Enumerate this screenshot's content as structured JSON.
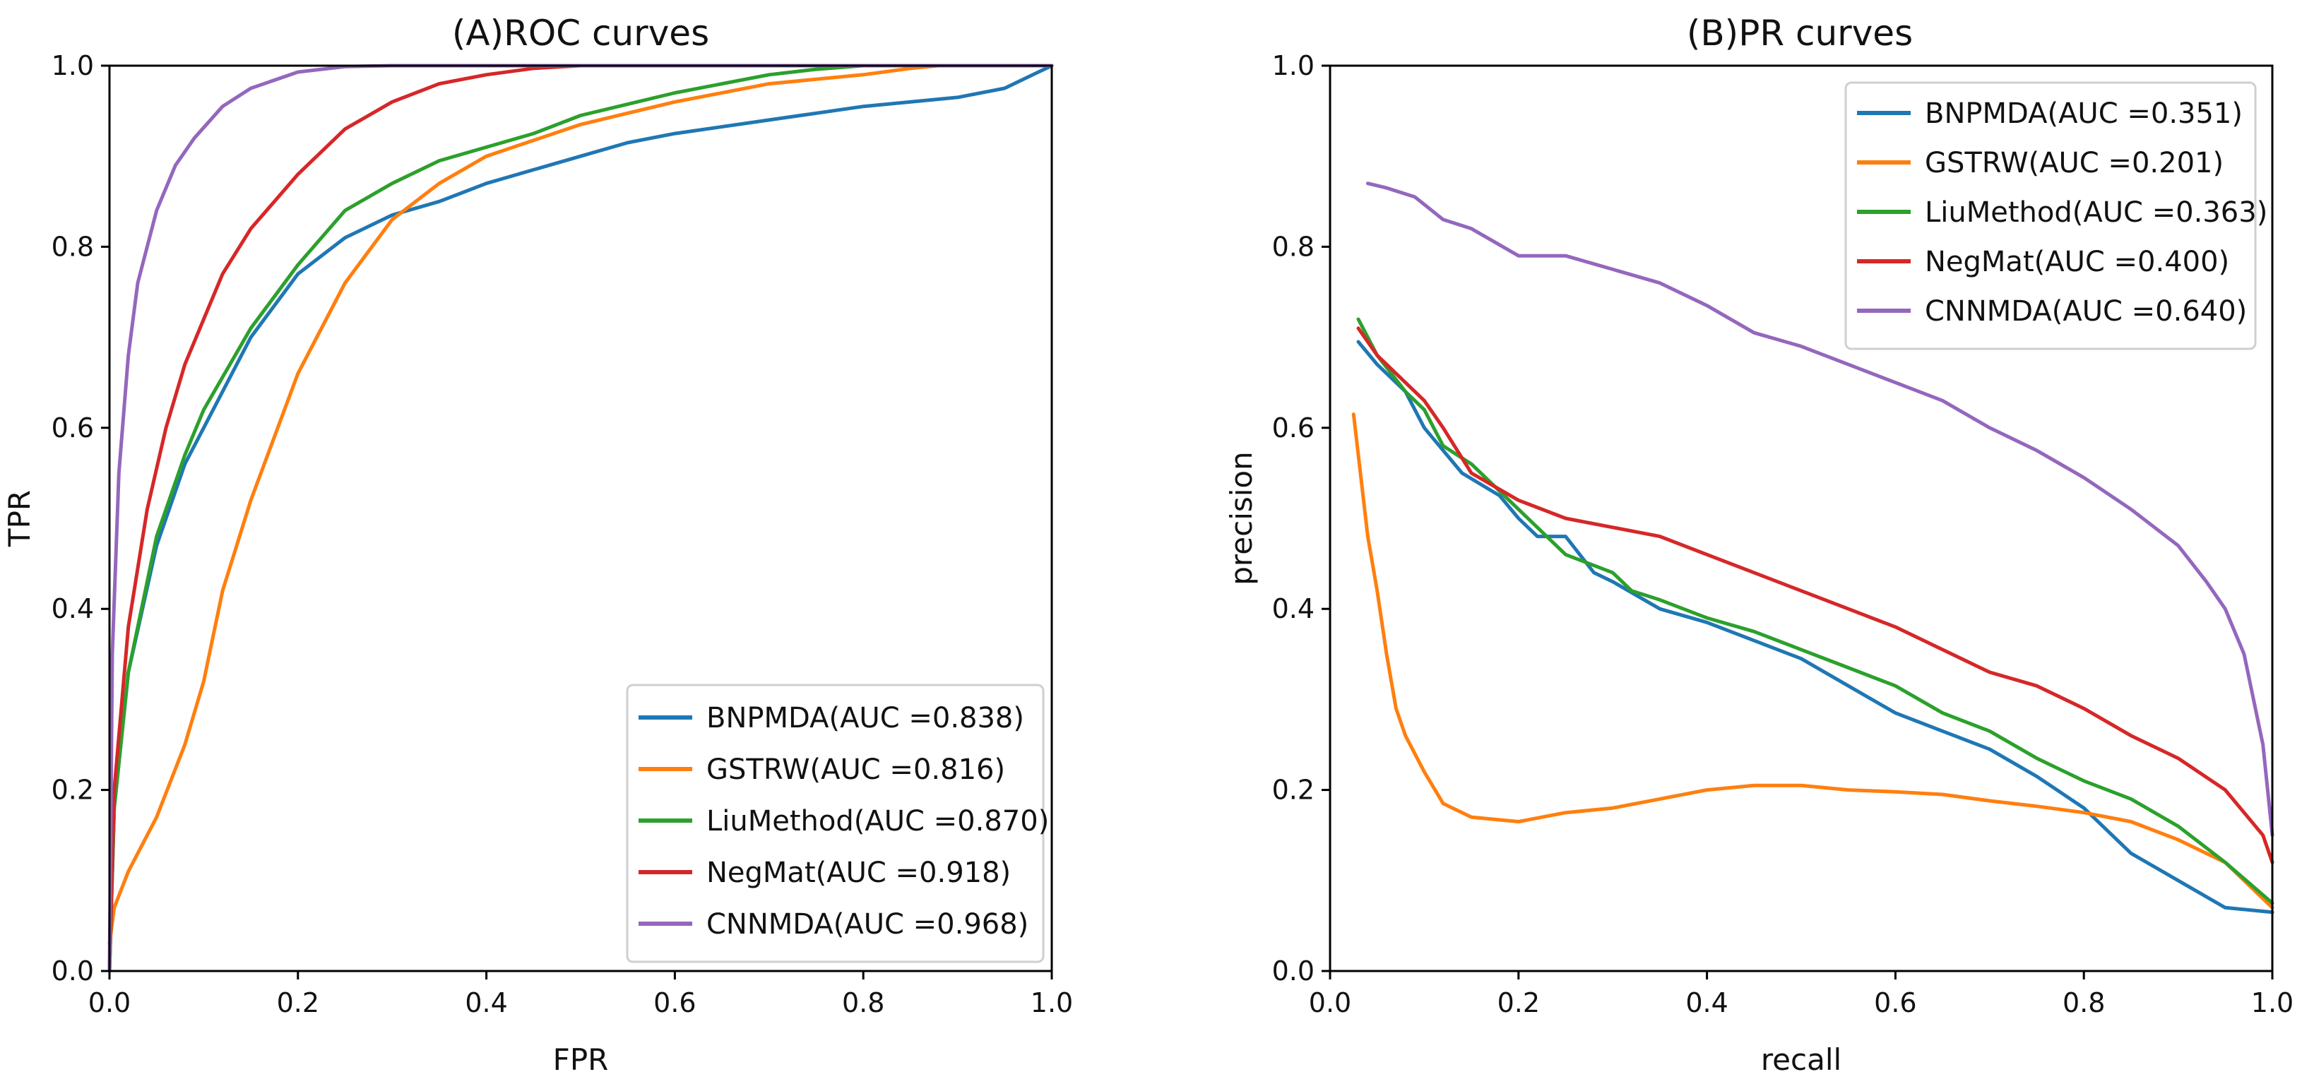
{
  "chart_data": [
    {
      "id": "roc",
      "type": "line",
      "title": "(A)ROC curves",
      "xlabel": "FPR",
      "ylabel": "TPR",
      "xlim": [
        0,
        1
      ],
      "ylim": [
        0,
        1
      ],
      "xticks": [
        "0.0",
        "0.2",
        "0.4",
        "0.6",
        "0.8",
        "1.0"
      ],
      "yticks": [
        "0.0",
        "0.2",
        "0.4",
        "0.6",
        "0.8",
        "1.0"
      ],
      "legend_position": "lower-right",
      "series": [
        {
          "name": "BNPMDA(AUC =0.838)",
          "color": "#1f77b4",
          "x": [
            0,
            0.005,
            0.02,
            0.05,
            0.08,
            0.1,
            0.15,
            0.2,
            0.25,
            0.3,
            0.35,
            0.4,
            0.45,
            0.5,
            0.55,
            0.6,
            0.7,
            0.8,
            0.9,
            0.95,
            0.98,
            1.0
          ],
          "y": [
            0,
            0.18,
            0.33,
            0.47,
            0.56,
            0.6,
            0.7,
            0.77,
            0.81,
            0.835,
            0.85,
            0.87,
            0.885,
            0.9,
            0.915,
            0.925,
            0.94,
            0.955,
            0.965,
            0.975,
            0.99,
            1.0
          ]
        },
        {
          "name": "GSTRW(AUC =0.816)",
          "color": "#ff7f0e",
          "x": [
            0,
            0.005,
            0.02,
            0.05,
            0.08,
            0.1,
            0.12,
            0.15,
            0.2,
            0.25,
            0.3,
            0.35,
            0.4,
            0.5,
            0.6,
            0.7,
            0.8,
            0.85,
            0.88,
            1.0
          ],
          "y": [
            0.03,
            0.07,
            0.11,
            0.17,
            0.25,
            0.32,
            0.42,
            0.52,
            0.66,
            0.76,
            0.83,
            0.87,
            0.9,
            0.935,
            0.96,
            0.98,
            0.99,
            0.997,
            1.0,
            1.0
          ],
          "close_to_top": true
        },
        {
          "name": "LiuMethod(AUC =0.870)",
          "color": "#2ca02c",
          "x": [
            0,
            0.005,
            0.02,
            0.05,
            0.08,
            0.1,
            0.15,
            0.2,
            0.25,
            0.3,
            0.35,
            0.4,
            0.45,
            0.5,
            0.6,
            0.7,
            0.75,
            0.8,
            1.0
          ],
          "y": [
            0,
            0.18,
            0.33,
            0.48,
            0.57,
            0.62,
            0.71,
            0.78,
            0.84,
            0.87,
            0.895,
            0.91,
            0.925,
            0.945,
            0.97,
            0.99,
            0.996,
            1.0,
            1.0
          ]
        },
        {
          "name": "NegMat(AUC =0.918)",
          "color": "#d62728",
          "x": [
            0,
            0.005,
            0.02,
            0.04,
            0.06,
            0.08,
            0.1,
            0.12,
            0.15,
            0.2,
            0.25,
            0.3,
            0.35,
            0.4,
            0.45,
            0.5,
            1.0
          ],
          "y": [
            0,
            0.2,
            0.38,
            0.51,
            0.6,
            0.67,
            0.72,
            0.77,
            0.82,
            0.88,
            0.93,
            0.96,
            0.98,
            0.99,
            0.997,
            1.0,
            1.0
          ]
        },
        {
          "name": "CNNMDA(AUC =0.968)",
          "color": "#9467bd",
          "x": [
            0,
            0.003,
            0.01,
            0.02,
            0.03,
            0.05,
            0.07,
            0.09,
            0.12,
            0.15,
            0.2,
            0.25,
            0.3,
            1.0
          ],
          "y": [
            0,
            0.35,
            0.55,
            0.68,
            0.76,
            0.84,
            0.89,
            0.92,
            0.955,
            0.975,
            0.993,
            0.999,
            1.0,
            1.0
          ]
        }
      ]
    },
    {
      "id": "pr",
      "type": "line",
      "title": "(B)PR curves",
      "xlabel": "recall",
      "ylabel": "precision",
      "xlim": [
        0,
        1
      ],
      "ylim": [
        0,
        1
      ],
      "xticks": [
        "0.0",
        "0.2",
        "0.4",
        "0.6",
        "0.8",
        "1.0"
      ],
      "yticks": [
        "0.0",
        "0.2",
        "0.4",
        "0.6",
        "0.8",
        "1.0"
      ],
      "legend_position": "top-right",
      "series": [
        {
          "name": "BNPMDA(AUC =0.351)",
          "color": "#1f77b4",
          "x": [
            0.03,
            0.05,
            0.08,
            0.1,
            0.14,
            0.18,
            0.2,
            0.22,
            0.25,
            0.28,
            0.3,
            0.35,
            0.4,
            0.45,
            0.5,
            0.55,
            0.6,
            0.65,
            0.7,
            0.75,
            0.8,
            0.85,
            0.9,
            0.95,
            1.0
          ],
          "y": [
            0.695,
            0.67,
            0.64,
            0.6,
            0.55,
            0.525,
            0.5,
            0.48,
            0.48,
            0.44,
            0.43,
            0.4,
            0.385,
            0.365,
            0.345,
            0.315,
            0.285,
            0.265,
            0.245,
            0.215,
            0.18,
            0.13,
            0.1,
            0.07,
            0.065
          ]
        },
        {
          "name": "GSTRW(AUC =0.201)",
          "color": "#ff7f0e",
          "x": [
            0.025,
            0.04,
            0.05,
            0.06,
            0.07,
            0.08,
            0.1,
            0.12,
            0.15,
            0.2,
            0.25,
            0.3,
            0.35,
            0.4,
            0.45,
            0.48,
            0.5,
            0.55,
            0.6,
            0.65,
            0.7,
            0.75,
            0.8,
            0.85,
            0.9,
            0.95,
            1.0
          ],
          "y": [
            0.615,
            0.48,
            0.42,
            0.35,
            0.29,
            0.26,
            0.22,
            0.185,
            0.17,
            0.165,
            0.175,
            0.18,
            0.19,
            0.2,
            0.205,
            0.205,
            0.205,
            0.2,
            0.198,
            0.195,
            0.188,
            0.182,
            0.175,
            0.165,
            0.145,
            0.12,
            0.07
          ]
        },
        {
          "name": "LiuMethod(AUC =0.363)",
          "color": "#2ca02c",
          "x": [
            0.03,
            0.05,
            0.08,
            0.1,
            0.12,
            0.15,
            0.2,
            0.25,
            0.3,
            0.32,
            0.35,
            0.4,
            0.45,
            0.5,
            0.55,
            0.6,
            0.65,
            0.7,
            0.75,
            0.8,
            0.85,
            0.9,
            0.95,
            1.0
          ],
          "y": [
            0.72,
            0.68,
            0.64,
            0.62,
            0.58,
            0.56,
            0.51,
            0.46,
            0.44,
            0.42,
            0.41,
            0.39,
            0.375,
            0.355,
            0.335,
            0.315,
            0.285,
            0.265,
            0.235,
            0.21,
            0.19,
            0.16,
            0.12,
            0.075
          ]
        },
        {
          "name": "NegMat(AUC =0.400)",
          "color": "#d62728",
          "x": [
            0.03,
            0.05,
            0.08,
            0.1,
            0.12,
            0.15,
            0.2,
            0.25,
            0.3,
            0.35,
            0.4,
            0.45,
            0.5,
            0.55,
            0.6,
            0.65,
            0.7,
            0.75,
            0.8,
            0.85,
            0.9,
            0.95,
            0.99,
            1.0
          ],
          "y": [
            0.71,
            0.68,
            0.65,
            0.63,
            0.6,
            0.55,
            0.52,
            0.5,
            0.49,
            0.48,
            0.46,
            0.44,
            0.42,
            0.4,
            0.38,
            0.355,
            0.33,
            0.315,
            0.29,
            0.26,
            0.235,
            0.2,
            0.15,
            0.12
          ]
        },
        {
          "name": "CNNMDA(AUC =0.640)",
          "color": "#9467bd",
          "x": [
            0.04,
            0.06,
            0.09,
            0.12,
            0.15,
            0.2,
            0.25,
            0.3,
            0.35,
            0.4,
            0.45,
            0.5,
            0.55,
            0.6,
            0.65,
            0.7,
            0.75,
            0.8,
            0.85,
            0.9,
            0.93,
            0.95,
            0.97,
            0.99,
            1.0
          ],
          "y": [
            0.87,
            0.865,
            0.855,
            0.83,
            0.82,
            0.79,
            0.79,
            0.775,
            0.76,
            0.735,
            0.705,
            0.69,
            0.67,
            0.65,
            0.63,
            0.6,
            0.575,
            0.545,
            0.51,
            0.47,
            0.43,
            0.4,
            0.35,
            0.25,
            0.15
          ]
        }
      ]
    }
  ]
}
